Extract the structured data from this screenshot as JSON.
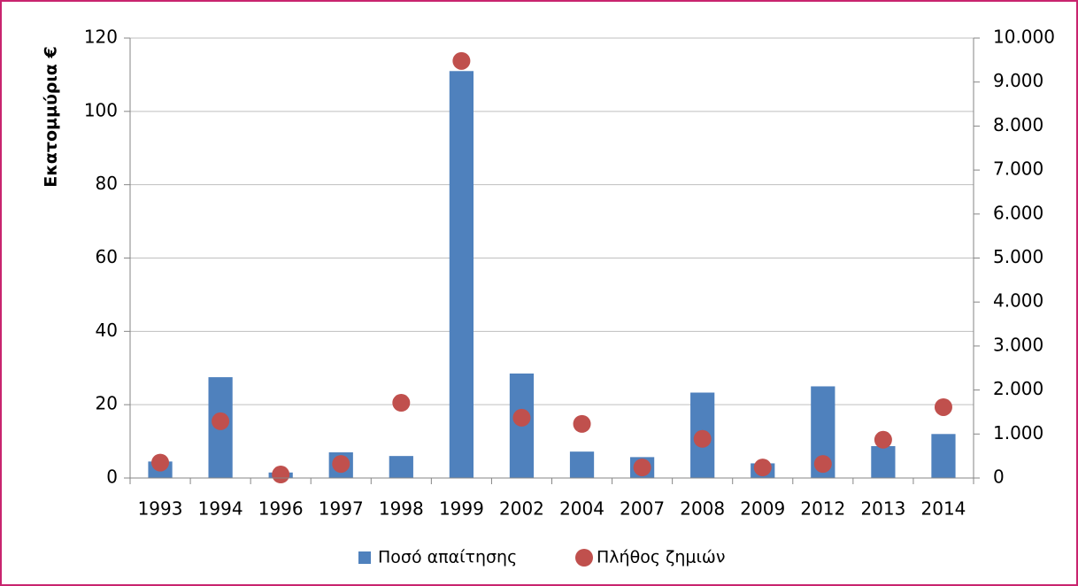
{
  "chart_data": {
    "type": "combo",
    "y_label": "Εκατομμύρια €",
    "categories": [
      "1993",
      "1994",
      "1996",
      "1997",
      "1998",
      "1999",
      "2002",
      "2004",
      "2007",
      "2008",
      "2009",
      "2012",
      "2013",
      "2014"
    ],
    "series": [
      {
        "name": "Ποσό απαίτησης",
        "type": "bar",
        "axis": "y",
        "color": "#4f81bd",
        "values": [
          4.5,
          27.5,
          1.5,
          7,
          6,
          111,
          28.5,
          7.2,
          5.7,
          23.3,
          4,
          25,
          8.7,
          12
        ]
      },
      {
        "name": "Πλήθος ζημιών",
        "type": "scatter",
        "axis": "y2",
        "color": "#c0504d",
        "values": [
          350,
          1290,
          80,
          320,
          1710,
          9480,
          1370,
          1230,
          240,
          890,
          240,
          320,
          870,
          1610
        ]
      }
    ],
    "ylim": [
      0,
      120
    ],
    "yticks": [
      0,
      20,
      40,
      60,
      80,
      100,
      120
    ],
    "y2lim": [
      0,
      10000
    ],
    "y2ticks": [
      0,
      {
        "value": 1000,
        "label": "1.000"
      },
      {
        "value": 2000,
        "label": "2.000"
      },
      {
        "value": 3000,
        "label": "3.000"
      },
      {
        "value": 4000,
        "label": "4.000"
      },
      {
        "value": 5000,
        "label": "5.000"
      },
      {
        "value": 6000,
        "label": "6.000"
      },
      {
        "value": 7000,
        "label": "7.000"
      },
      {
        "value": 8000,
        "label": "8.000"
      },
      {
        "value": 9000,
        "label": "9.000"
      },
      {
        "value": 10000,
        "label": "10.000"
      }
    ],
    "grid": true,
    "legend": "bottom"
  }
}
